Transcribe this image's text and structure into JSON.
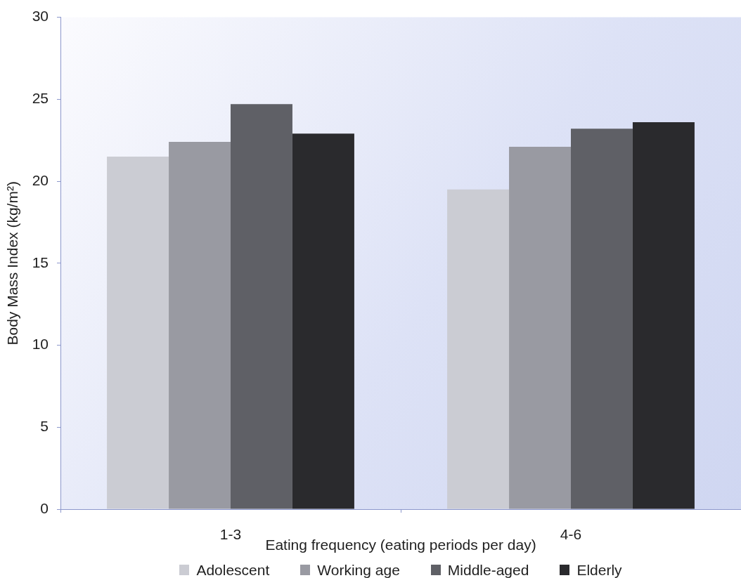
{
  "chart_data": {
    "type": "bar",
    "xlabel": "Eating frequency (eating periods per day)",
    "ylabel": "Body Mass Index (kg/m²)",
    "categories": [
      "1-3",
      "4-6"
    ],
    "series": [
      {
        "name": "Adolescent",
        "color": "#cbccd3",
        "values": [
          21.5,
          19.5
        ]
      },
      {
        "name": "Working age",
        "color": "#999aa2",
        "values": [
          22.4,
          22.1
        ]
      },
      {
        "name": "Middle-aged",
        "color": "#5f6066",
        "values": [
          24.7,
          23.2
        ]
      },
      {
        "name": "Elderly",
        "color": "#2a2a2d",
        "values": [
          22.9,
          23.6
        ]
      }
    ],
    "ylim": [
      0,
      30
    ],
    "yticks": [
      0,
      5,
      10,
      15,
      20,
      25,
      30
    ],
    "legend": "bottom"
  }
}
